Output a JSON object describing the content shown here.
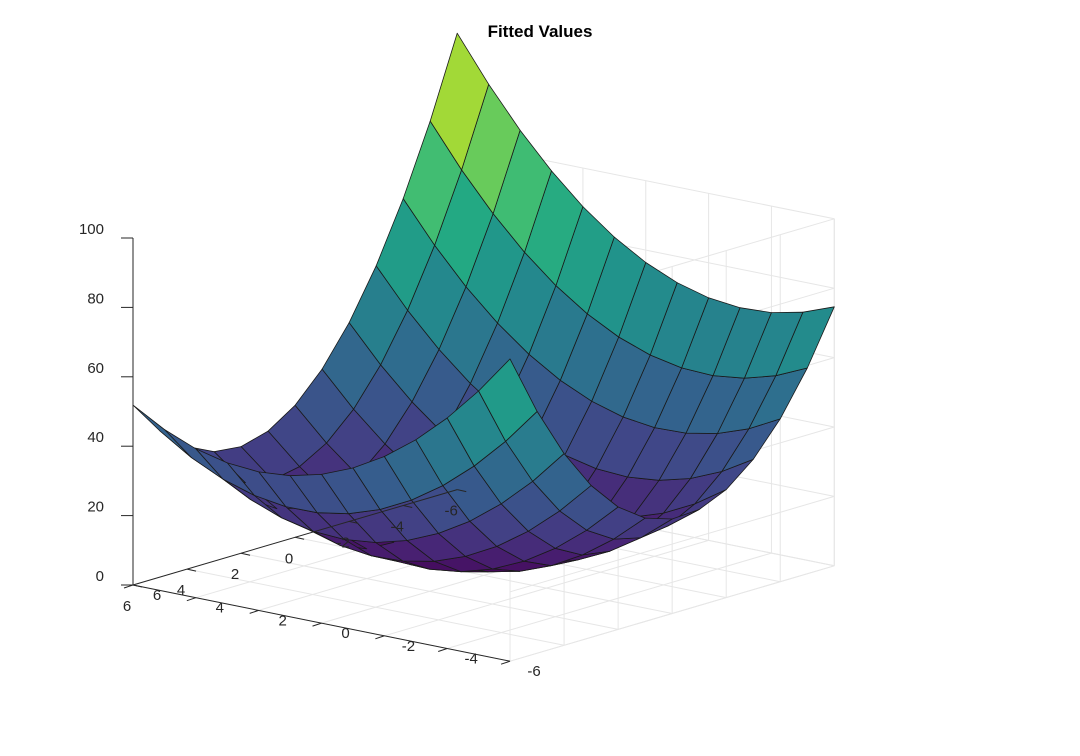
{
  "chart_data": {
    "type": "surface",
    "title": "Fitted Values",
    "xlabel": "",
    "ylabel": "",
    "zlabel": "",
    "x": [
      -6,
      -5,
      -4,
      -3,
      -2,
      -1,
      0,
      1,
      2,
      3,
      4,
      5,
      6
    ],
    "y": [
      -6,
      -5,
      -4,
      -3,
      -2,
      -1,
      0,
      1,
      2,
      3,
      4,
      5,
      6
    ],
    "z_formula": "z = 1.49*x^2 - 0.64*x*y + 0.74*y^2 - 2.8*x + 0.9*y + 6",
    "xlim": [
      -6,
      6
    ],
    "ylim": [
      -6,
      6
    ],
    "zlim": [
      0,
      100
    ],
    "x_ticks": [
      "-6",
      "-4",
      "-2",
      "0",
      "2",
      "4",
      "6"
    ],
    "y_ticks": [
      "-6",
      "-4",
      "-2",
      "0",
      "2",
      "4",
      "6"
    ],
    "z_ticks": [
      "0",
      "20",
      "40",
      "60",
      "80",
      "100"
    ],
    "colormap": "viridis",
    "grid": true,
    "edge_color": "#1a1a1a",
    "grid_color": "#e6e6e6",
    "axis_color": "#262626"
  }
}
